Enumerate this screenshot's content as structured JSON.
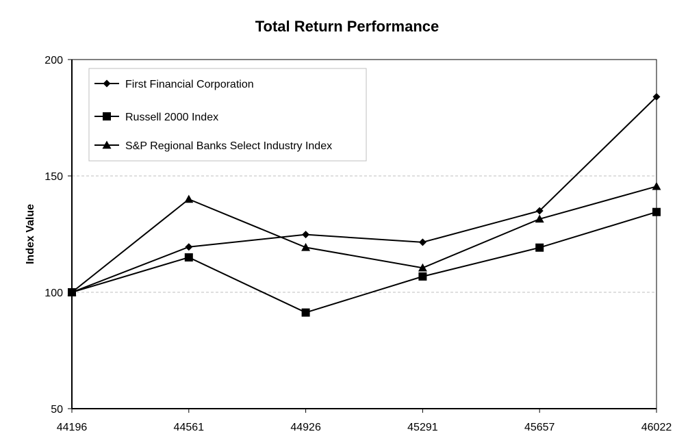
{
  "chart_data": {
    "type": "line",
    "title": "Total Return Performance",
    "xlabel": "",
    "ylabel": "Index Value",
    "x": [
      44196,
      44561,
      44926,
      45291,
      45657,
      46022
    ],
    "ylim": [
      50,
      200
    ],
    "yticks": [
      50,
      100,
      150,
      200
    ],
    "grid": "horizontal dashed",
    "legend_position": "top-left",
    "series": [
      {
        "name": "First Financial Corporation",
        "marker": "diamond",
        "values": [
          100,
          119.5,
          124.8,
          121.5,
          135,
          184
        ]
      },
      {
        "name": "Russell 2000 Index",
        "marker": "square",
        "values": [
          100,
          115,
          91.3,
          106.8,
          119.2,
          134.5
        ]
      },
      {
        "name": "S&P Regional Banks Select Industry Index",
        "marker": "triangle",
        "values": [
          100,
          140,
          119.3,
          110.5,
          131.5,
          145.5
        ]
      }
    ],
    "colors": {
      "line": "#000000",
      "grid": "#bfbfbf",
      "legend_border": "#bfbfbf"
    }
  }
}
